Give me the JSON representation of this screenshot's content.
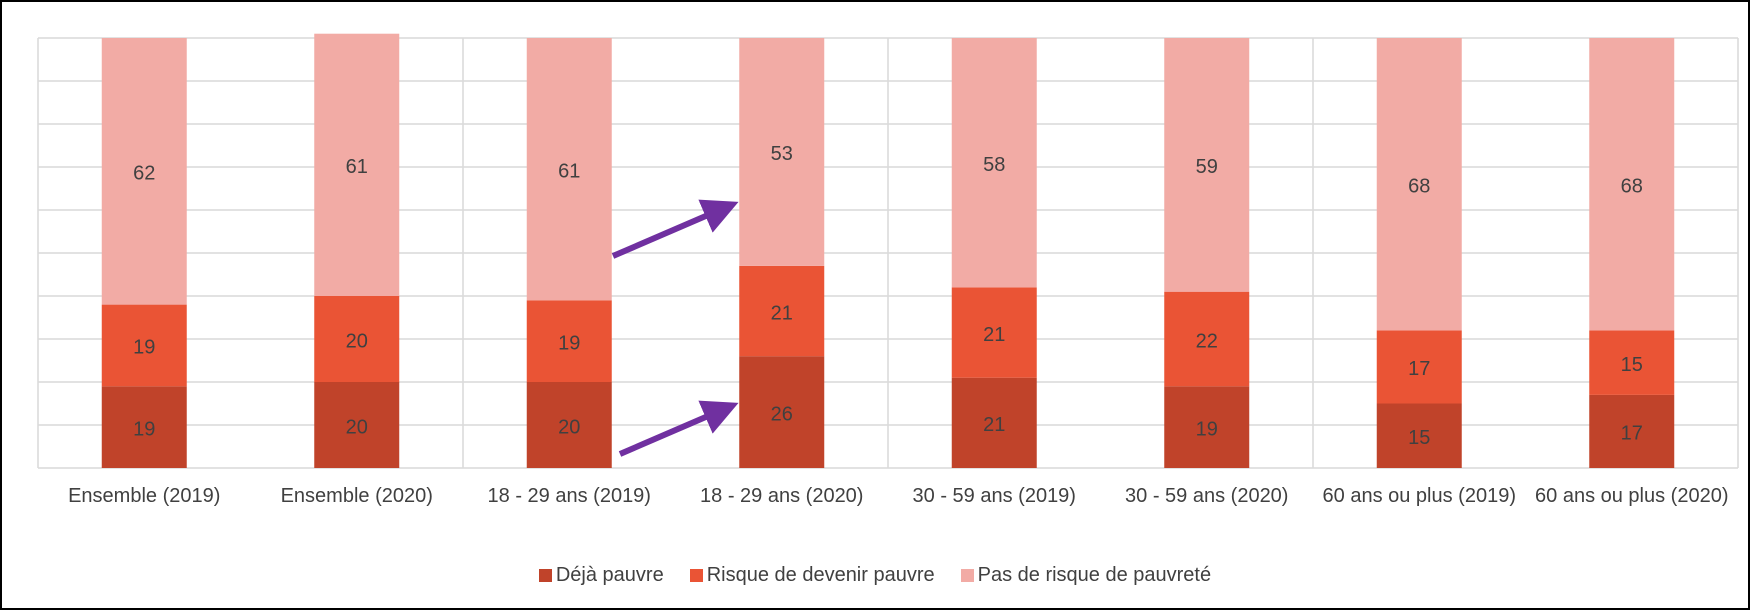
{
  "chart_data": {
    "type": "stacked_bar",
    "categories": [
      "Ensemble (2019)",
      "Ensemble (2020)",
      "18 - 29 ans (2019)",
      "18 - 29 ans (2020)",
      "30 - 59 ans (2019)",
      "30 - 59 ans (2020)",
      "60 ans ou plus (2019)",
      "60 ans ou plus (2020)"
    ],
    "series": [
      {
        "name": "Déjà pauvre",
        "color": "#c0432a",
        "values": [
          19,
          20,
          20,
          26,
          21,
          19,
          15,
          17
        ]
      },
      {
        "name": "Risque de devenir pauvre",
        "color": "#ea5435",
        "values": [
          19,
          20,
          19,
          21,
          21,
          22,
          17,
          15
        ]
      },
      {
        "name": "Pas de risque de pauvreté",
        "color": "#f2aba5",
        "values": [
          62,
          61,
          61,
          53,
          58,
          59,
          68,
          68
        ]
      }
    ],
    "ylim": [
      0,
      100
    ],
    "yticks": [
      0,
      10,
      20,
      30,
      40,
      50,
      60,
      70,
      80,
      90,
      100
    ],
    "grid": true
  }
}
